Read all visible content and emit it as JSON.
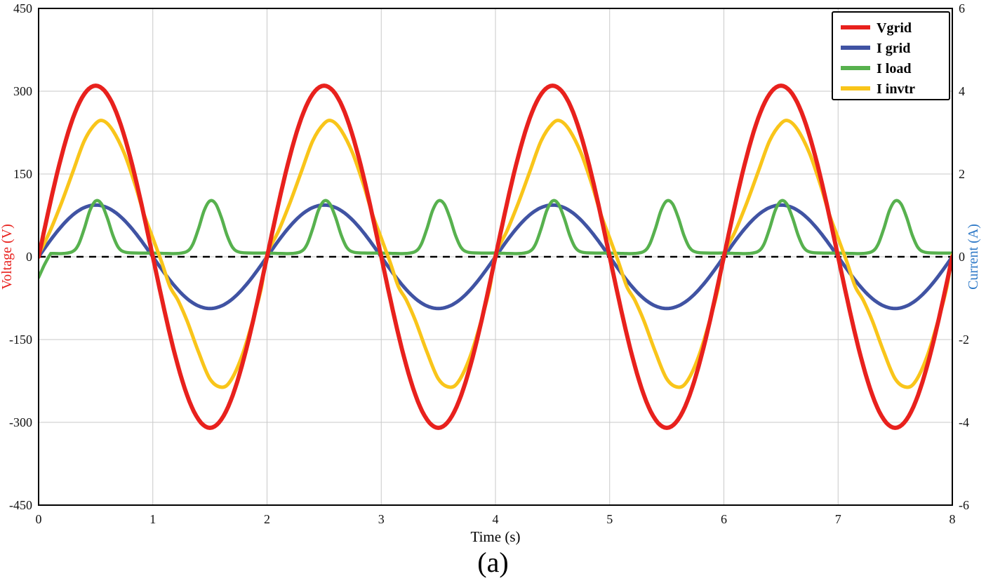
{
  "caption": "(a)",
  "chart_data": {
    "type": "line",
    "title": "",
    "xlabel": "Time (s)",
    "ylabel_left": "Voltage (V)",
    "ylabel_right": "Current (A)",
    "axis_label_colors": {
      "left": "#e8211d",
      "right": "#2e79c7",
      "x": "#000000"
    },
    "tick_label_color": "#111111",
    "xlim": [
      0,
      8
    ],
    "ylim_left": [
      -450,
      450
    ],
    "ylim_right": [
      -6,
      6
    ],
    "xticks": [
      0,
      1,
      2,
      3,
      4,
      5,
      6,
      7,
      8
    ],
    "yticks_left": [
      -450,
      -300,
      -150,
      0,
      150,
      300,
      450
    ],
    "yticks_right": [
      -6,
      -4,
      -2,
      0,
      2,
      4,
      6
    ],
    "grid": true,
    "grid_color": "#c9c9c9",
    "zero_line": {
      "value": 0,
      "color": "#000000",
      "style": "dashed"
    },
    "legend_position": "top-right",
    "legend_labels": [
      "Vgrid",
      "I grid",
      "I load",
      "I invtr"
    ],
    "draw_order": [
      "I grid",
      "I load",
      "I invtr",
      "Vgrid"
    ],
    "series": [
      {
        "name": "Vgrid",
        "axis": "left",
        "color": "#e8211d",
        "line_width": 6,
        "waveform": "sine",
        "amplitude": 310,
        "period": 2,
        "phase": 0
      },
      {
        "name": "I grid",
        "axis": "right",
        "color": "#4053a3",
        "line_width": 5,
        "waveform": "sine",
        "amplitude": 1.25,
        "period": 2,
        "phase": 0
      },
      {
        "name": "I load",
        "axis": "right",
        "color": "#57b14e",
        "line_width": 4.5,
        "waveform": "periodic_points",
        "repeat_period": 1,
        "initial_points": [
          [
            0,
            -0.5
          ],
          [
            0.05,
            -0.2
          ],
          [
            0.1,
            0.05
          ]
        ],
        "points": [
          [
            0,
            0.09
          ],
          [
            0.12,
            0.08
          ],
          [
            0.22,
            0.08
          ],
          [
            0.3,
            0.13
          ],
          [
            0.35,
            0.3
          ],
          [
            0.4,
            0.68
          ],
          [
            0.45,
            1.12
          ],
          [
            0.5,
            1.35
          ],
          [
            0.55,
            1.28
          ],
          [
            0.6,
            0.95
          ],
          [
            0.65,
            0.52
          ],
          [
            0.7,
            0.22
          ],
          [
            0.76,
            0.11
          ],
          [
            0.88,
            0.09
          ],
          [
            1,
            0.09
          ]
        ]
      },
      {
        "name": "I invtr",
        "axis": "right",
        "color": "#f9c51a",
        "line_width": 5,
        "waveform": "periodic_points",
        "repeat_period": 2,
        "points": [
          [
            0,
            0.05
          ],
          [
            0.1,
            0.62
          ],
          [
            0.2,
            1.3
          ],
          [
            0.3,
            2.05
          ],
          [
            0.4,
            2.8
          ],
          [
            0.5,
            3.22
          ],
          [
            0.57,
            3.28
          ],
          [
            0.65,
            3.05
          ],
          [
            0.75,
            2.5
          ],
          [
            0.85,
            1.7
          ],
          [
            0.92,
            1.05
          ],
          [
            1.0,
            0.45
          ],
          [
            1.08,
            -0.15
          ],
          [
            1.15,
            -0.72
          ],
          [
            1.22,
            -1.05
          ],
          [
            1.3,
            -1.55
          ],
          [
            1.4,
            -2.3
          ],
          [
            1.5,
            -2.95
          ],
          [
            1.6,
            -3.15
          ],
          [
            1.68,
            -3.0
          ],
          [
            1.78,
            -2.4
          ],
          [
            1.88,
            -1.5
          ],
          [
            1.95,
            -0.75
          ],
          [
            2.0,
            0.05
          ]
        ]
      }
    ]
  }
}
